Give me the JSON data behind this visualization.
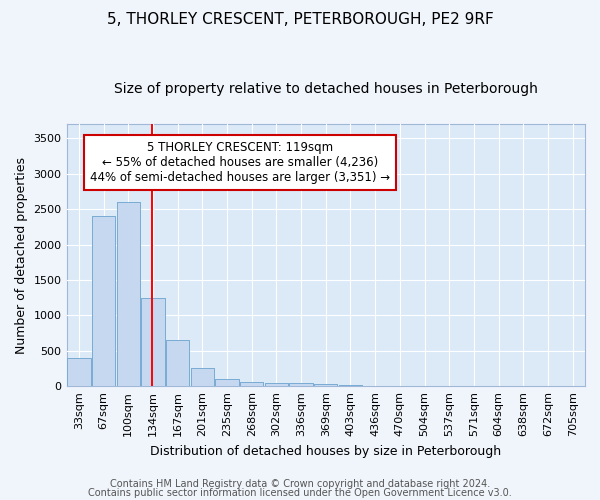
{
  "title": "5, THORLEY CRESCENT, PETERBOROUGH, PE2 9RF",
  "subtitle": "Size of property relative to detached houses in Peterborough",
  "xlabel": "Distribution of detached houses by size in Peterborough",
  "ylabel": "Number of detached properties",
  "bar_labels": [
    "33sqm",
    "67sqm",
    "100sqm",
    "134sqm",
    "167sqm",
    "201sqm",
    "235sqm",
    "268sqm",
    "302sqm",
    "336sqm",
    "369sqm",
    "403sqm",
    "436sqm",
    "470sqm",
    "504sqm",
    "537sqm",
    "571sqm",
    "604sqm",
    "638sqm",
    "672sqm",
    "705sqm"
  ],
  "bar_values": [
    400,
    2400,
    2600,
    1250,
    650,
    260,
    100,
    55,
    50,
    45,
    30,
    25,
    0,
    0,
    0,
    0,
    0,
    0,
    0,
    0,
    0
  ],
  "bar_color": "#c5d8f0",
  "bar_edge_color": "#7aadd4",
  "plot_background_color": "#dce9f7",
  "figure_background_color": "#f0f4fb",
  "grid_color": "#ffffff",
  "red_line_x": 2.98,
  "annotation_text_line1": "5 THORLEY CRESCENT: 119sqm",
  "annotation_text_line2": "← 55% of detached houses are smaller (4,236)",
  "annotation_text_line3": "44% of semi-detached houses are larger (3,351) →",
  "annotation_box_color": "#ffffff",
  "annotation_box_edge": "#cc0000",
  "footer_line1": "Contains HM Land Registry data © Crown copyright and database right 2024.",
  "footer_line2": "Contains public sector information licensed under the Open Government Licence v3.0.",
  "ylim": [
    0,
    3700
  ],
  "yticks": [
    0,
    500,
    1000,
    1500,
    2000,
    2500,
    3000,
    3500
  ],
  "title_fontsize": 11,
  "subtitle_fontsize": 10,
  "axis_label_fontsize": 9,
  "tick_fontsize": 8,
  "annotation_fontsize": 8.5,
  "footer_fontsize": 7
}
